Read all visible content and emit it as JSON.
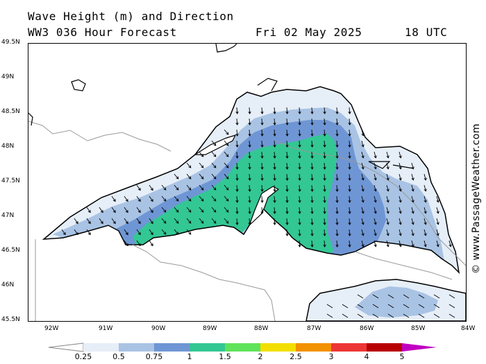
{
  "header": {
    "title": "Wave Height (m) and Direction",
    "forecast": "WW3 036 Hour Forecast",
    "date": "Fri 02 May 2025",
    "time": "18 UTC"
  },
  "copyright": "© www.PassageWeather.com",
  "lat_labels": [
    "49.5N",
    "49N",
    "48.5N",
    "48N",
    "47.5N",
    "47N",
    "46.5N",
    "46N",
    "45.5N"
  ],
  "lon_labels": [
    "92W",
    "91W",
    "90W",
    "89W",
    "88W",
    "87W",
    "86W",
    "85W",
    "84W"
  ],
  "colorbar": {
    "labels": [
      "0.25",
      "0.5",
      "0.75",
      "1",
      "1.5",
      "2",
      "2.5",
      "3",
      "4",
      "5"
    ],
    "colors": [
      "#e6eef8",
      "#a9c3e4",
      "#6f96d4",
      "#33c794",
      "#5fe35a",
      "#f2df00",
      "#f39200",
      "#ee3535",
      "#b80000",
      "#c000c0"
    ]
  },
  "map": {
    "region": "Lake Superior",
    "lat_range": [
      45.5,
      49.5
    ],
    "lon_range": [
      -92.4,
      -84.0
    ],
    "wave_colors": {
      "band_0_25": "#e6eef8",
      "band_0_5": "#a9c3e4",
      "band_0_75": "#6f96d4",
      "band_1_0": "#33c794"
    },
    "wind_direction": "south"
  }
}
